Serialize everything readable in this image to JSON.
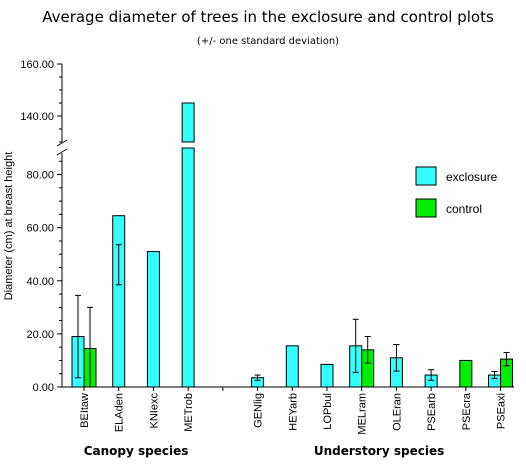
{
  "chart_data": {
    "type": "bar",
    "title": "Average diameter of  trees in the exclosure and control plots",
    "subtitle": "(+/- one standard deviation)",
    "ylabel": "Diameter (cm) at breast height",
    "xlabel": "",
    "broken_axis": true,
    "ylim": [
      0,
      160
    ],
    "yticks": [
      "0.00",
      "20.00",
      "40.00",
      "60.00",
      "80.00",
      "140.00",
      "160.00"
    ],
    "categories": [
      "BEItaw",
      "ELAden",
      "KNIexc",
      "METrob",
      "",
      "GENlig",
      "HEYarb",
      "LOPbul",
      "MELram",
      "OLEran",
      "PSEarb",
      "PSEcra",
      "PSEaxi"
    ],
    "groups": [
      {
        "label": "Canopy species",
        "from": 0,
        "to": 3
      },
      {
        "label": "Understory species",
        "from": 5,
        "to": 12
      }
    ],
    "series": [
      {
        "name": "exclosure",
        "color": "#33ffff",
        "values": [
          19,
          64.5,
          51,
          145,
          null,
          3.5,
          15.5,
          8.5,
          15.5,
          11,
          4.5,
          null,
          4.5
        ],
        "errors": [
          15.5,
          26,
          null,
          null,
          null,
          1,
          null,
          null,
          10,
          5,
          2,
          null,
          1.3
        ]
      },
      {
        "name": "control",
        "color": "#00ee00",
        "values": [
          14.5,
          null,
          null,
          null,
          null,
          null,
          null,
          null,
          14,
          null,
          null,
          10,
          10.5
        ],
        "errors": [
          15.5,
          null,
          null,
          null,
          null,
          null,
          null,
          null,
          5,
          null,
          null,
          null,
          2.5
        ]
      }
    ],
    "legend": {
      "position": "right",
      "entries": [
        "exclosure",
        "control"
      ]
    }
  }
}
